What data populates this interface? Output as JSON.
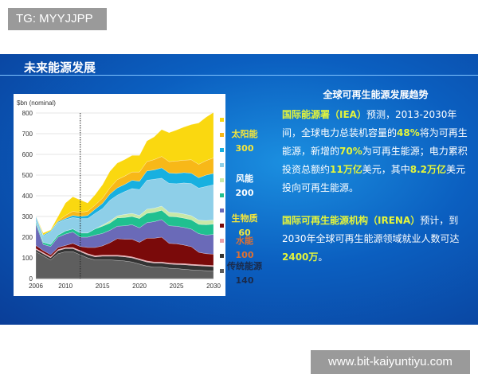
{
  "watermarks": {
    "top": "TG: MYYJJPP",
    "bottom": "www.bit-kaiyuntiyu.com"
  },
  "slide": {
    "title": "未来能源发展",
    "right_title": "全球可再生能源发展趋势",
    "p1": [
      {
        "t": "国际能源署（IEA）",
        "h": true
      },
      {
        "t": "预测，2013-2030年间，全球电力总装机容量的",
        "h": false
      },
      {
        "t": "48%",
        "h": true
      },
      {
        "t": "将为可再生能源，新增的",
        "h": false
      },
      {
        "t": "70%",
        "h": true
      },
      {
        "t": "为可再生能源；电力累积投资总额约",
        "h": false
      },
      {
        "t": "11万亿",
        "h": true
      },
      {
        "t": "美元，其中",
        "h": false
      },
      {
        "t": "8.2万亿",
        "h": true
      },
      {
        "t": "美元投向可再生能源。",
        "h": false
      }
    ],
    "p2": [
      {
        "t": "国际可再生能源机构（IRENA）",
        "h": true
      },
      {
        "t": "预计，到2030年全球可再生能源领域就业人数可达",
        "h": false
      },
      {
        "t": "2400万",
        "h": true
      },
      {
        "t": "。",
        "h": false
      }
    ],
    "legend": [
      {
        "label": "太阳能",
        "value": "300",
        "color": "#f5e63a"
      },
      {
        "label": "风能",
        "value": "200",
        "color": "#ffffff"
      },
      {
        "label": "生物质",
        "value": "60",
        "color": "#f5e63a"
      },
      {
        "label": "水能",
        "value": "100",
        "color": "#e07030"
      },
      {
        "label": "传统能源",
        "value": "140",
        "color": "#1a2a4a"
      }
    ]
  },
  "chart_data": {
    "type": "area",
    "stacked": true,
    "ylabel": "$bn (nominal)",
    "ylim": [
      0,
      800
    ],
    "yticks": [
      0,
      100,
      200,
      300,
      400,
      500,
      600,
      700,
      800
    ],
    "xticks": [
      2006,
      2010,
      2015,
      2020,
      2025,
      2030
    ],
    "marker_year": 2012,
    "grid": true,
    "x": [
      2006,
      2007,
      2008,
      2009,
      2010,
      2011,
      2012,
      2013,
      2014,
      2015,
      2016,
      2017,
      2018,
      2019,
      2020,
      2021,
      2022,
      2023,
      2024,
      2025,
      2026,
      2027,
      2028,
      2029,
      2030
    ],
    "series": [
      {
        "color": "#5e5e5e",
        "values": [
          130,
          110,
          90,
          120,
          130,
          130,
          115,
          100,
          90,
          90,
          90,
          88,
          85,
          80,
          70,
          60,
          55,
          55,
          50,
          48,
          45,
          42,
          40,
          38,
          36
        ]
      },
      {
        "color": "#333333",
        "values": [
          10,
          10,
          10,
          15,
          15,
          15,
          15,
          15,
          15,
          18,
          18,
          20,
          20,
          20,
          20,
          20,
          20,
          20,
          20,
          20,
          22,
          22,
          22,
          22,
          22
        ]
      },
      {
        "color": "#e8a0a8",
        "values": [
          5,
          5,
          5,
          5,
          5,
          5,
          5,
          5,
          5,
          5,
          5,
          5,
          5,
          5,
          5,
          5,
          5,
          5,
          5,
          5,
          5,
          5,
          5,
          5,
          5
        ]
      },
      {
        "color": "#7a0a0a",
        "values": [
          15,
          10,
          10,
          10,
          10,
          20,
          20,
          30,
          40,
          45,
          60,
          80,
          80,
          85,
          80,
          110,
          115,
          120,
          95,
          95,
          90,
          85,
          60,
          55,
          55
        ]
      },
      {
        "color": "#6a6ab8",
        "values": [
          105,
          30,
          40,
          50,
          55,
          55,
          45,
          50,
          60,
          60,
          60,
          60,
          65,
          70,
          70,
          75,
          80,
          85,
          85,
          85,
          85,
          85,
          90,
          90,
          95
        ]
      },
      {
        "color": "#20c090",
        "values": [
          10,
          10,
          10,
          10,
          15,
          15,
          20,
          20,
          30,
          35,
          35,
          40,
          40,
          40,
          45,
          45,
          45,
          45,
          45,
          45,
          45,
          45,
          45,
          50,
          50
        ]
      },
      {
        "color": "#c8e8a8",
        "values": [
          0,
          0,
          0,
          0,
          0,
          0,
          0,
          0,
          0,
          5,
          10,
          10,
          15,
          15,
          15,
          20,
          20,
          20,
          20,
          20,
          20,
          20,
          20,
          20,
          20
        ]
      },
      {
        "color": "#8ecfe8",
        "values": [
          30,
          30,
          60,
          60,
          55,
          55,
          70,
          70,
          75,
          80,
          100,
          100,
          110,
          120,
          125,
          140,
          140,
          135,
          140,
          140,
          150,
          155,
          155,
          165,
          170
        ]
      },
      {
        "color": "#18b0e0",
        "values": [
          0,
          5,
          5,
          5,
          5,
          10,
          10,
          15,
          20,
          25,
          30,
          35,
          35,
          40,
          40,
          45,
          45,
          50,
          50,
          50,
          50,
          50,
          50,
          55,
          55
        ]
      },
      {
        "color": "#f8b818",
        "values": [
          0,
          0,
          0,
          5,
          15,
          20,
          20,
          20,
          20,
          25,
          30,
          40,
          40,
          40,
          45,
          45,
          50,
          55,
          55,
          60,
          60,
          65,
          65,
          70,
          75
        ]
      },
      {
        "color": "#fad810",
        "values": [
          0,
          10,
          5,
          20,
          60,
          70,
          60,
          40,
          50,
          65,
          80,
          80,
          80,
          80,
          80,
          100,
          110,
          130,
          140,
          150,
          160,
          170,
          200,
          210,
          220
        ]
      }
    ]
  }
}
